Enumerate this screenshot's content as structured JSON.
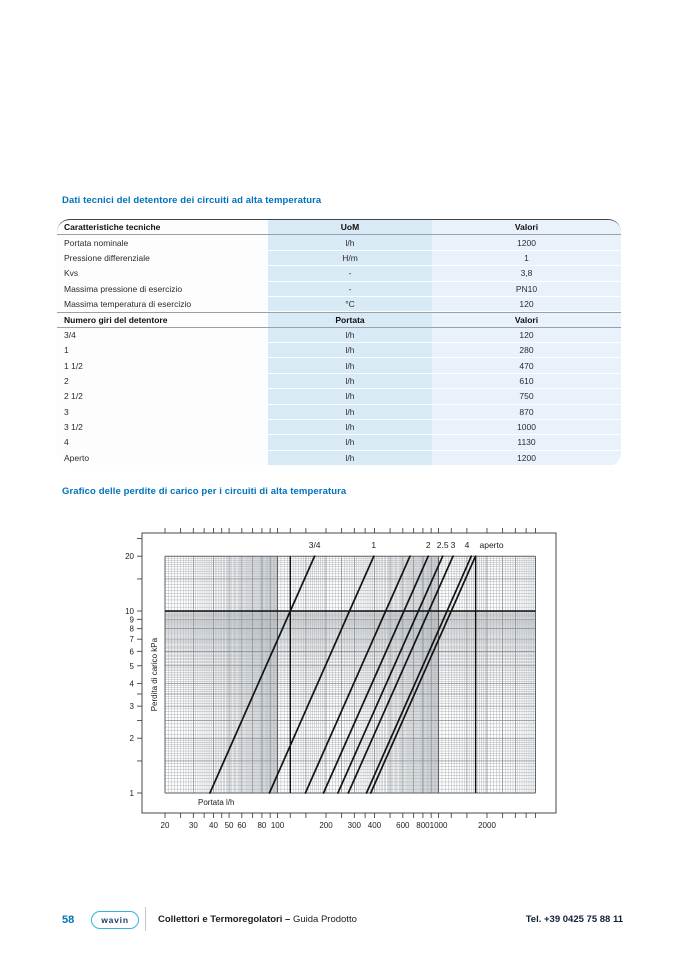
{
  "colors": {
    "accent": "#0072bc",
    "table_band_mid": "#d9eaf7",
    "table_band_right": "#e9f2fb",
    "wavin_cyan": "#35b4dc"
  },
  "sections": {
    "tech": {
      "title": "Dati tecnici del detentore dei circuiti ad alta temperatura"
    },
    "chart": {
      "title": "Grafico delle perdite di carico per i circuiti di alta temperatura"
    }
  },
  "table": {
    "rows": [
      {
        "h": true,
        "c1": "Caratteristiche tecniche",
        "c2": "UoM",
        "c3": "Valori"
      },
      {
        "h": false,
        "c1": "Portata nominale",
        "c2": "l/h",
        "c3": "1200"
      },
      {
        "h": false,
        "c1": "Pressione differenziale",
        "c2": "H/m",
        "c3": "1"
      },
      {
        "h": false,
        "c1": "Kvs",
        "c2": "-",
        "c3": "3,8"
      },
      {
        "h": false,
        "c1": "Massima pressione di esercizio",
        "c2": "-",
        "c3": "PN10"
      },
      {
        "h": false,
        "c1": "Massima temperatura di esercizio",
        "c2": "°C",
        "c3": "120"
      },
      {
        "h": true,
        "c1": "Numero giri del detentore",
        "c2": "Portata",
        "c3": "Valori"
      },
      {
        "h": false,
        "c1": "3/4",
        "c2": "l/h",
        "c3": "120"
      },
      {
        "h": false,
        "c1": "1",
        "c2": "l/h",
        "c3": "280"
      },
      {
        "h": false,
        "c1": "1 1/2",
        "c2": "l/h",
        "c3": "470"
      },
      {
        "h": false,
        "c1": "2",
        "c2": "l/h",
        "c3": "610"
      },
      {
        "h": false,
        "c1": "2 1/2",
        "c2": "l/h",
        "c3": "750"
      },
      {
        "h": false,
        "c1": "3",
        "c2": "l/h",
        "c3": "870"
      },
      {
        "h": false,
        "c1": "3 1/2",
        "c2": "l/h",
        "c3": "1000"
      },
      {
        "h": false,
        "c1": "4",
        "c2": "l/h",
        "c3": "1130"
      },
      {
        "h": false,
        "c1": "Aperto",
        "c2": "l/h",
        "c3": "1200"
      }
    ]
  },
  "chart_data": {
    "type": "line",
    "title": "Grafico delle perdite di carico per i circuiti di alta temperatura",
    "xlabel": "Portata  l/h",
    "ylabel": "Perdita di carico  kPa",
    "x_scale": "log",
    "y_scale": "log",
    "xlim": [
      20,
      4000
    ],
    "ylim": [
      1,
      20
    ],
    "grid": true,
    "x_ticks_labeled": [
      20,
      30,
      40,
      50,
      60,
      80,
      100,
      200,
      300,
      400,
      600,
      800,
      1000,
      2000
    ],
    "x_ticks_minor": [
      25,
      35,
      45,
      70,
      90,
      120,
      150,
      250,
      350,
      500,
      700,
      900,
      1200,
      1500,
      2500,
      3000,
      3500,
      4000
    ],
    "y_ticks_labeled": [
      1,
      2,
      3,
      4,
      5,
      6,
      7,
      8,
      9,
      10,
      20
    ],
    "y_ticks_minor": [
      1.5,
      2.5,
      3.5,
      15,
      25
    ],
    "series": [
      {
        "name": "3/4",
        "label": "3/4",
        "flow_at_10kPa": 120,
        "points": [
          [
            38,
            1
          ],
          [
            120,
            10
          ],
          [
            170,
            20
          ]
        ]
      },
      {
        "name": "1",
        "label": "1",
        "flow_at_10kPa": 280,
        "points": [
          [
            89,
            1
          ],
          [
            280,
            10
          ],
          [
            396,
            20
          ]
        ]
      },
      {
        "name": "1 1/2",
        "label": "",
        "flow_at_10kPa": 470,
        "points": [
          [
            149,
            1
          ],
          [
            470,
            10
          ],
          [
            665,
            20
          ]
        ]
      },
      {
        "name": "2",
        "label": "2",
        "flow_at_10kPa": 610,
        "points": [
          [
            193,
            1
          ],
          [
            610,
            10
          ],
          [
            863,
            20
          ]
        ]
      },
      {
        "name": "2 1/2",
        "label": "2.5",
        "flow_at_10kPa": 750,
        "points": [
          [
            237,
            1
          ],
          [
            750,
            10
          ],
          [
            1061,
            20
          ]
        ]
      },
      {
        "name": "3",
        "label": "3",
        "flow_at_10kPa": 870,
        "points": [
          [
            275,
            1
          ],
          [
            870,
            10
          ],
          [
            1230,
            20
          ]
        ]
      },
      {
        "name": "4",
        "label": "4",
        "label_anchor": "end",
        "flow_at_10kPa": 1130,
        "points": [
          [
            357,
            1
          ],
          [
            1130,
            10
          ],
          [
            1598,
            20
          ]
        ]
      },
      {
        "name": "aperto",
        "label": "aperto",
        "label_anchor": "start",
        "flow_at_10kPa": 1200,
        "points": [
          [
            379,
            1
          ],
          [
            1200,
            10
          ],
          [
            1697,
            20
          ]
        ]
      }
    ],
    "reference_lines": {
      "horizontal_kPa": [
        10
      ],
      "vertical_lh": [
        120,
        1700
      ]
    },
    "legend_position": "top-labels"
  },
  "footer": {
    "page_number": "58",
    "brand": "wavin",
    "doc_title_bold": "Collettori e Termoregolatori –",
    "doc_title_regular": "Guida Prodotto",
    "phone": "Tel. +39 0425 75 88 11"
  }
}
